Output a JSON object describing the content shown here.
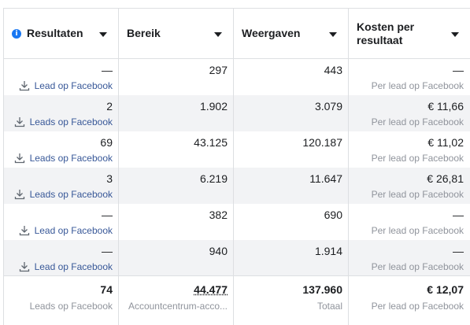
{
  "headers": {
    "results": "Resultaten",
    "reach": "Bereik",
    "impressions": "Weergaven",
    "cost_per_result": "Kosten per resultaat"
  },
  "icons": {
    "info": "info-icon",
    "sort": "caret-down-icon",
    "download": "download-icon"
  },
  "colors": {
    "link": "#385898",
    "muted": "#90949c",
    "accent": "#1877f2",
    "stripe": "#f2f3f5"
  },
  "rows": [
    {
      "results": "—",
      "results_label": "Lead op Facebook",
      "reach": "297",
      "impressions": "443",
      "cost": "—",
      "cost_label": "Per lead op Facebook"
    },
    {
      "results": "2",
      "results_label": "Leads op Facebook",
      "reach": "1.902",
      "impressions": "3.079",
      "cost": "€ 11,66",
      "cost_label": "Per lead op Facebook"
    },
    {
      "results": "69",
      "results_label": "Leads op Facebook",
      "reach": "43.125",
      "impressions": "120.187",
      "cost": "€ 11,02",
      "cost_label": "Per lead op Facebook"
    },
    {
      "results": "3",
      "results_label": "Leads op Facebook",
      "reach": "6.219",
      "impressions": "11.647",
      "cost": "€ 26,81",
      "cost_label": "Per lead op Facebook"
    },
    {
      "results": "—",
      "results_label": "Lead op Facebook",
      "reach": "382",
      "impressions": "690",
      "cost": "—",
      "cost_label": "Per lead op Facebook"
    },
    {
      "results": "—",
      "results_label": "Lead op Facebook",
      "reach": "940",
      "impressions": "1.914",
      "cost": "—",
      "cost_label": "Per lead op Facebook"
    }
  ],
  "totals": {
    "results": "74",
    "results_label": "Leads op Facebook",
    "reach": "44.477",
    "reach_label": "Accountcentrum-acco...",
    "impressions": "137.960",
    "impressions_label": "Totaal",
    "cost": "€ 12,07",
    "cost_label": "Per lead op Facebook"
  }
}
